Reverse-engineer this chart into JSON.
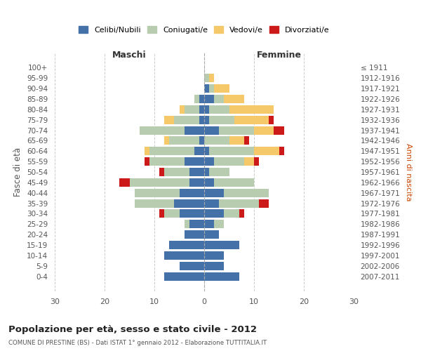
{
  "age_groups": [
    "100+",
    "95-99",
    "90-94",
    "85-89",
    "80-84",
    "75-79",
    "70-74",
    "65-69",
    "60-64",
    "55-59",
    "50-54",
    "45-49",
    "40-44",
    "35-39",
    "30-34",
    "25-29",
    "20-24",
    "15-19",
    "10-14",
    "5-9",
    "0-4"
  ],
  "birth_years": [
    "≤ 1911",
    "1912-1916",
    "1917-1921",
    "1922-1926",
    "1927-1931",
    "1932-1936",
    "1937-1941",
    "1942-1946",
    "1947-1951",
    "1952-1956",
    "1957-1961",
    "1962-1966",
    "1967-1971",
    "1972-1976",
    "1977-1981",
    "1982-1986",
    "1987-1991",
    "1992-1996",
    "1997-2001",
    "2002-2006",
    "2007-2011"
  ],
  "male": {
    "celibi": [
      0,
      0,
      0,
      1,
      1,
      1,
      4,
      1,
      2,
      4,
      3,
      3,
      5,
      6,
      5,
      3,
      4,
      7,
      8,
      5,
      8
    ],
    "coniugati": [
      0,
      0,
      0,
      1,
      3,
      5,
      9,
      6,
      9,
      7,
      5,
      12,
      9,
      8,
      3,
      1,
      0,
      0,
      0,
      0,
      0
    ],
    "vedovi": [
      0,
      0,
      0,
      0,
      1,
      2,
      0,
      1,
      1,
      0,
      0,
      0,
      0,
      0,
      0,
      0,
      0,
      0,
      0,
      0,
      0
    ],
    "divorziati": [
      0,
      0,
      0,
      0,
      0,
      0,
      0,
      0,
      0,
      1,
      1,
      2,
      0,
      0,
      1,
      0,
      0,
      0,
      0,
      0,
      0
    ]
  },
  "female": {
    "nubili": [
      0,
      0,
      1,
      2,
      1,
      1,
      3,
      0,
      1,
      2,
      1,
      2,
      4,
      3,
      4,
      2,
      3,
      7,
      4,
      4,
      7
    ],
    "coniugate": [
      0,
      1,
      1,
      2,
      4,
      5,
      7,
      5,
      9,
      6,
      4,
      8,
      9,
      8,
      3,
      2,
      0,
      0,
      0,
      0,
      0
    ],
    "vedove": [
      0,
      1,
      3,
      4,
      9,
      7,
      4,
      3,
      5,
      2,
      0,
      0,
      0,
      0,
      0,
      0,
      0,
      0,
      0,
      0,
      0
    ],
    "divorziate": [
      0,
      0,
      0,
      0,
      0,
      1,
      2,
      1,
      1,
      1,
      0,
      0,
      0,
      2,
      1,
      0,
      0,
      0,
      0,
      0,
      0
    ]
  },
  "colors": {
    "celibi": "#4472a8",
    "coniugati": "#b8ccb0",
    "vedovi": "#f5c96a",
    "divorziati": "#cc1a1a"
  },
  "xlim": [
    -30,
    30
  ],
  "xticks": [
    -30,
    -20,
    -10,
    0,
    10,
    20,
    30
  ],
  "xticklabels": [
    "30",
    "20",
    "10",
    "0",
    "10",
    "20",
    "30"
  ],
  "title": "Popolazione per età, sesso e stato civile - 2012",
  "subtitle": "COMUNE DI PRESTINE (BS) - Dati ISTAT 1° gennaio 2012 - Elaborazione TUTTITALIA.IT",
  "ylabel_left": "Fasce di età",
  "ylabel_right": "Anni di nascita",
  "label_maschi": "Maschi",
  "label_femmine": "Femmine",
  "legend_labels": [
    "Celibi/Nubili",
    "Coniugati/e",
    "Vedovi/e",
    "Divorziati/e"
  ],
  "bg_color": "#ffffff",
  "grid_color": "#cccccc"
}
